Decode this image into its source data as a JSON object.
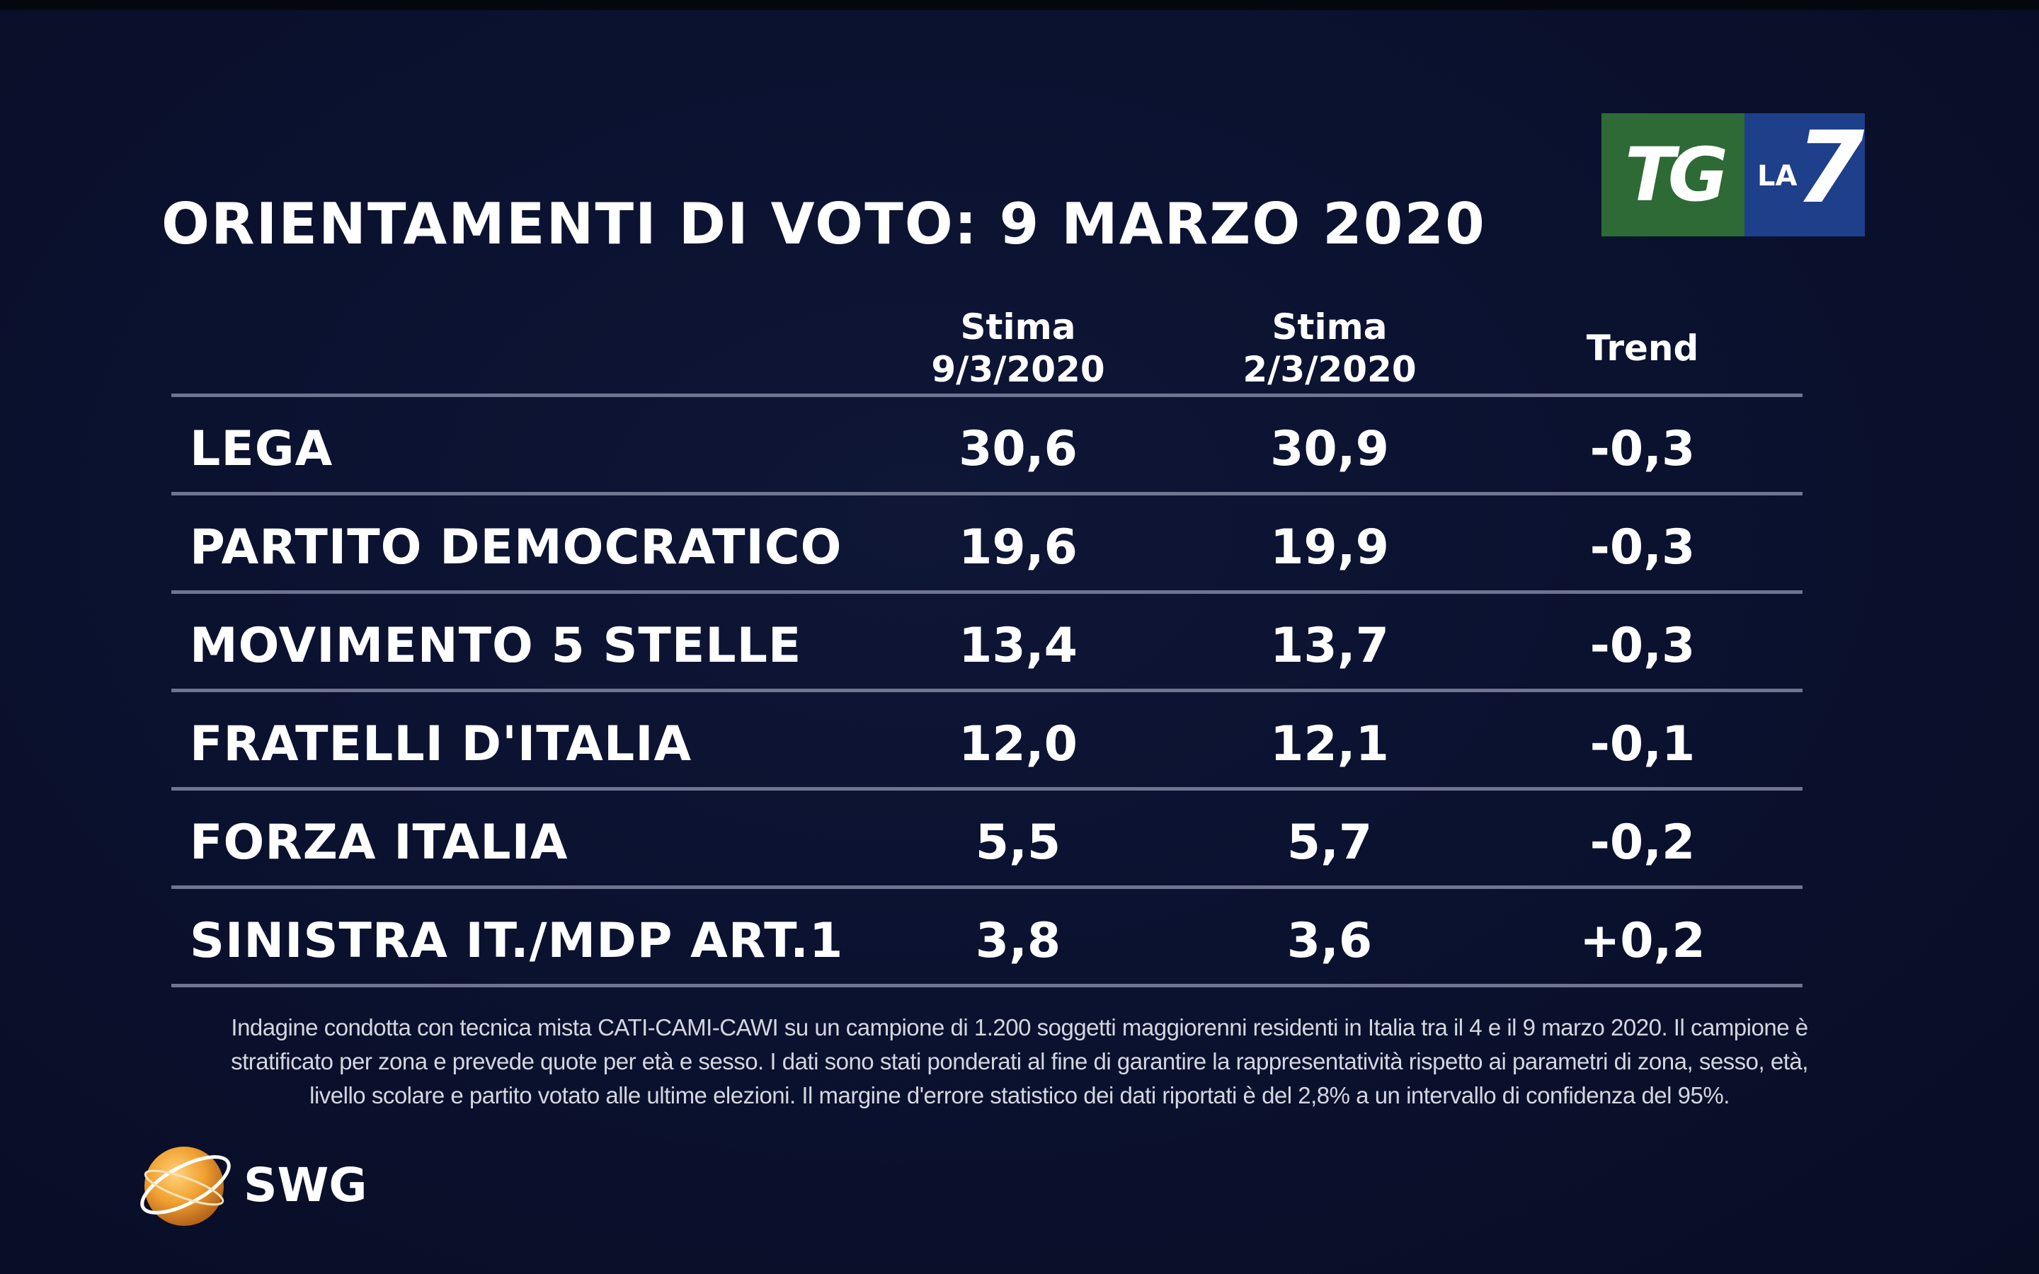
{
  "title": "ORIENTAMENTI DI VOTO: 9 MARZO 2020",
  "logo": {
    "tg": "TG",
    "la": "LA",
    "seven": "7",
    "tg_color": "#2d6a35",
    "la7_color": "#1e3f8a"
  },
  "columns": [
    {
      "line1": "Stima",
      "line2": "9/3/2020"
    },
    {
      "line1": "Stima",
      "line2": "2/3/2020"
    },
    {
      "line1": "Trend",
      "line2": ""
    }
  ],
  "rows": [
    {
      "party": "LEGA",
      "v1": "30,6",
      "v2": "30,9",
      "trend": "-0,3"
    },
    {
      "party": "PARTITO DEMOCRATICO",
      "v1": "19,6",
      "v2": "19,9",
      "trend": "-0,3"
    },
    {
      "party": "MOVIMENTO 5 STELLE",
      "v1": "13,4",
      "v2": "13,7",
      "trend": "-0,3"
    },
    {
      "party": "FRATELLI D'ITALIA",
      "v1": "12,0",
      "v2": "12,1",
      "trend": "-0,1"
    },
    {
      "party": "FORZA ITALIA",
      "v1": "5,5",
      "v2": "5,7",
      "trend": "-0,2"
    },
    {
      "party": "SINISTRA IT./MDP ART.1",
      "v1": "3,8",
      "v2": "3,6",
      "trend": "+0,2"
    }
  ],
  "footnote": {
    "line1": "Indagine condotta con tecnica mista CATI-CAMI-CAWI su un campione di 1.200 soggetti maggiorenni residenti in Italia tra il 4 e il 9 marzo 2020. Il campione è",
    "line2": "stratificato per zona e prevede quote per età e sesso. I dati sono stati ponderati al fine di garantire la rappresentatività rispetto ai parametri di zona, sesso, età,",
    "line3": "livello scolare e partito votato alle ultime elezioni. Il margine d'errore statistico dei dati riportati è del 2,8% a un intervallo di confidenza del 95%."
  },
  "brand": {
    "name": "SWG",
    "icon": "globe-icon",
    "icon_color": "#f0a030"
  },
  "chart_data": {
    "type": "table",
    "title": "ORIENTAMENTI DI VOTO: 9 MARZO 2020",
    "columns": [
      "Stima 9/3/2020",
      "Stima 2/3/2020",
      "Trend"
    ],
    "categories": [
      "LEGA",
      "PARTITO DEMOCRATICO",
      "MOVIMENTO 5 STELLE",
      "FRATELLI D'ITALIA",
      "FORZA ITALIA",
      "SINISTRA IT./MDP ART.1"
    ],
    "series": [
      {
        "name": "Stima 9/3/2020",
        "values": [
          30.6,
          19.6,
          13.4,
          12.0,
          5.5,
          3.8
        ]
      },
      {
        "name": "Stima 2/3/2020",
        "values": [
          30.9,
          19.9,
          13.7,
          12.1,
          5.7,
          3.6
        ]
      },
      {
        "name": "Trend",
        "values": [
          -0.3,
          -0.3,
          -0.3,
          -0.1,
          -0.2,
          0.2
        ]
      }
    ]
  }
}
